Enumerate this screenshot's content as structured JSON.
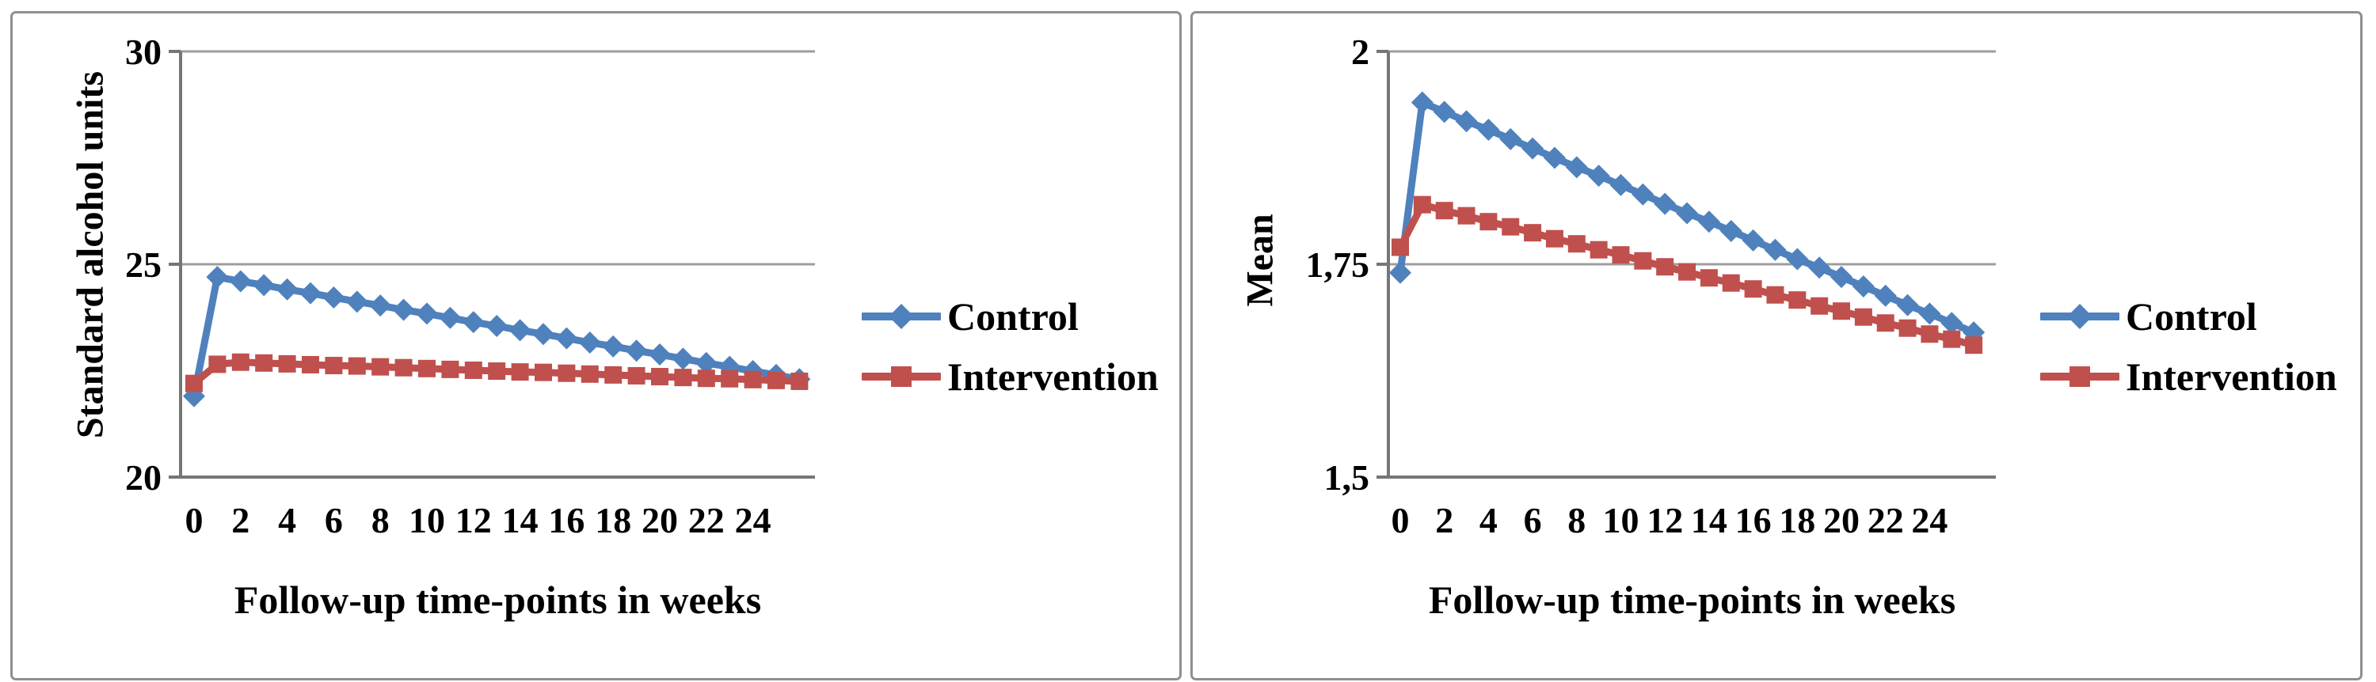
{
  "figure": {
    "background": "#ffffff",
    "panel_border_color": "#8f8f8f"
  },
  "colors": {
    "axis": "#767676",
    "gridline": "#9d9d9d",
    "text": "#000000"
  },
  "chart_data": [
    {
      "type": "line",
      "title": "",
      "xlabel": "Follow-up time-points in weeks",
      "ylabel": "Standard alcohol units",
      "grid": "horizontal",
      "legend_position": "right",
      "x": [
        0,
        1,
        2,
        3,
        4,
        5,
        6,
        7,
        8,
        9,
        10,
        11,
        12,
        13,
        14,
        15,
        16,
        17,
        18,
        19,
        20,
        21,
        22,
        23,
        24,
        25,
        26
      ],
      "xticks": [
        0,
        2,
        4,
        6,
        8,
        10,
        12,
        14,
        16,
        18,
        20,
        22,
        24
      ],
      "ylim": [
        20,
        30
      ],
      "yticks": [
        {
          "value": 20,
          "label": "20"
        },
        {
          "value": 25,
          "label": "25"
        },
        {
          "value": 30,
          "label": "30"
        }
      ],
      "series": [
        {
          "name": "Control",
          "color": "#4F81BD",
          "marker": "diamond",
          "values": [
            21.9,
            24.7,
            24.6,
            24.51,
            24.41,
            24.32,
            24.22,
            24.12,
            24.03,
            23.93,
            23.84,
            23.74,
            23.64,
            23.55,
            23.45,
            23.36,
            23.26,
            23.16,
            23.07,
            22.97,
            22.88,
            22.78,
            22.68,
            22.59,
            22.49,
            22.4,
            22.3
          ]
        },
        {
          "name": "Intervention",
          "color": "#C0504D",
          "marker": "square",
          "values": [
            22.2,
            22.65,
            22.7,
            22.68,
            22.66,
            22.64,
            22.62,
            22.61,
            22.59,
            22.57,
            22.55,
            22.53,
            22.51,
            22.49,
            22.47,
            22.46,
            22.44,
            22.42,
            22.4,
            22.38,
            22.36,
            22.34,
            22.32,
            22.31,
            22.29,
            22.27,
            22.25
          ]
        }
      ]
    },
    {
      "type": "line",
      "title": "",
      "xlabel": "Follow-up time-points in weeks",
      "ylabel": "Mean",
      "grid": "horizontal",
      "legend_position": "right",
      "x": [
        0,
        1,
        2,
        3,
        4,
        5,
        6,
        7,
        8,
        9,
        10,
        11,
        12,
        13,
        14,
        15,
        16,
        17,
        18,
        19,
        20,
        21,
        22,
        23,
        24,
        25,
        26
      ],
      "xticks": [
        0,
        2,
        4,
        6,
        8,
        10,
        12,
        14,
        16,
        18,
        20,
        22,
        24
      ],
      "ylim": [
        1.5,
        2
      ],
      "yticks": [
        {
          "value": 1.5,
          "label": "1,5"
        },
        {
          "value": 1.75,
          "label": "1,75"
        },
        {
          "value": 2,
          "label": "2"
        }
      ],
      "series": [
        {
          "name": "Control",
          "color": "#4F81BD",
          "marker": "diamond",
          "values": [
            1.74,
            1.94,
            1.929,
            1.918,
            1.908,
            1.897,
            1.886,
            1.875,
            1.864,
            1.854,
            1.843,
            1.832,
            1.821,
            1.81,
            1.8,
            1.789,
            1.778,
            1.767,
            1.756,
            1.746,
            1.735,
            1.724,
            1.713,
            1.702,
            1.692,
            1.681,
            1.67
          ]
        },
        {
          "name": "Intervention",
          "color": "#C0504D",
          "marker": "square",
          "values": [
            1.77,
            1.82,
            1.813,
            1.807,
            1.8,
            1.794,
            1.787,
            1.78,
            1.774,
            1.767,
            1.761,
            1.754,
            1.747,
            1.741,
            1.734,
            1.728,
            1.721,
            1.714,
            1.708,
            1.701,
            1.695,
            1.688,
            1.681,
            1.675,
            1.668,
            1.662,
            1.655
          ]
        }
      ]
    }
  ]
}
